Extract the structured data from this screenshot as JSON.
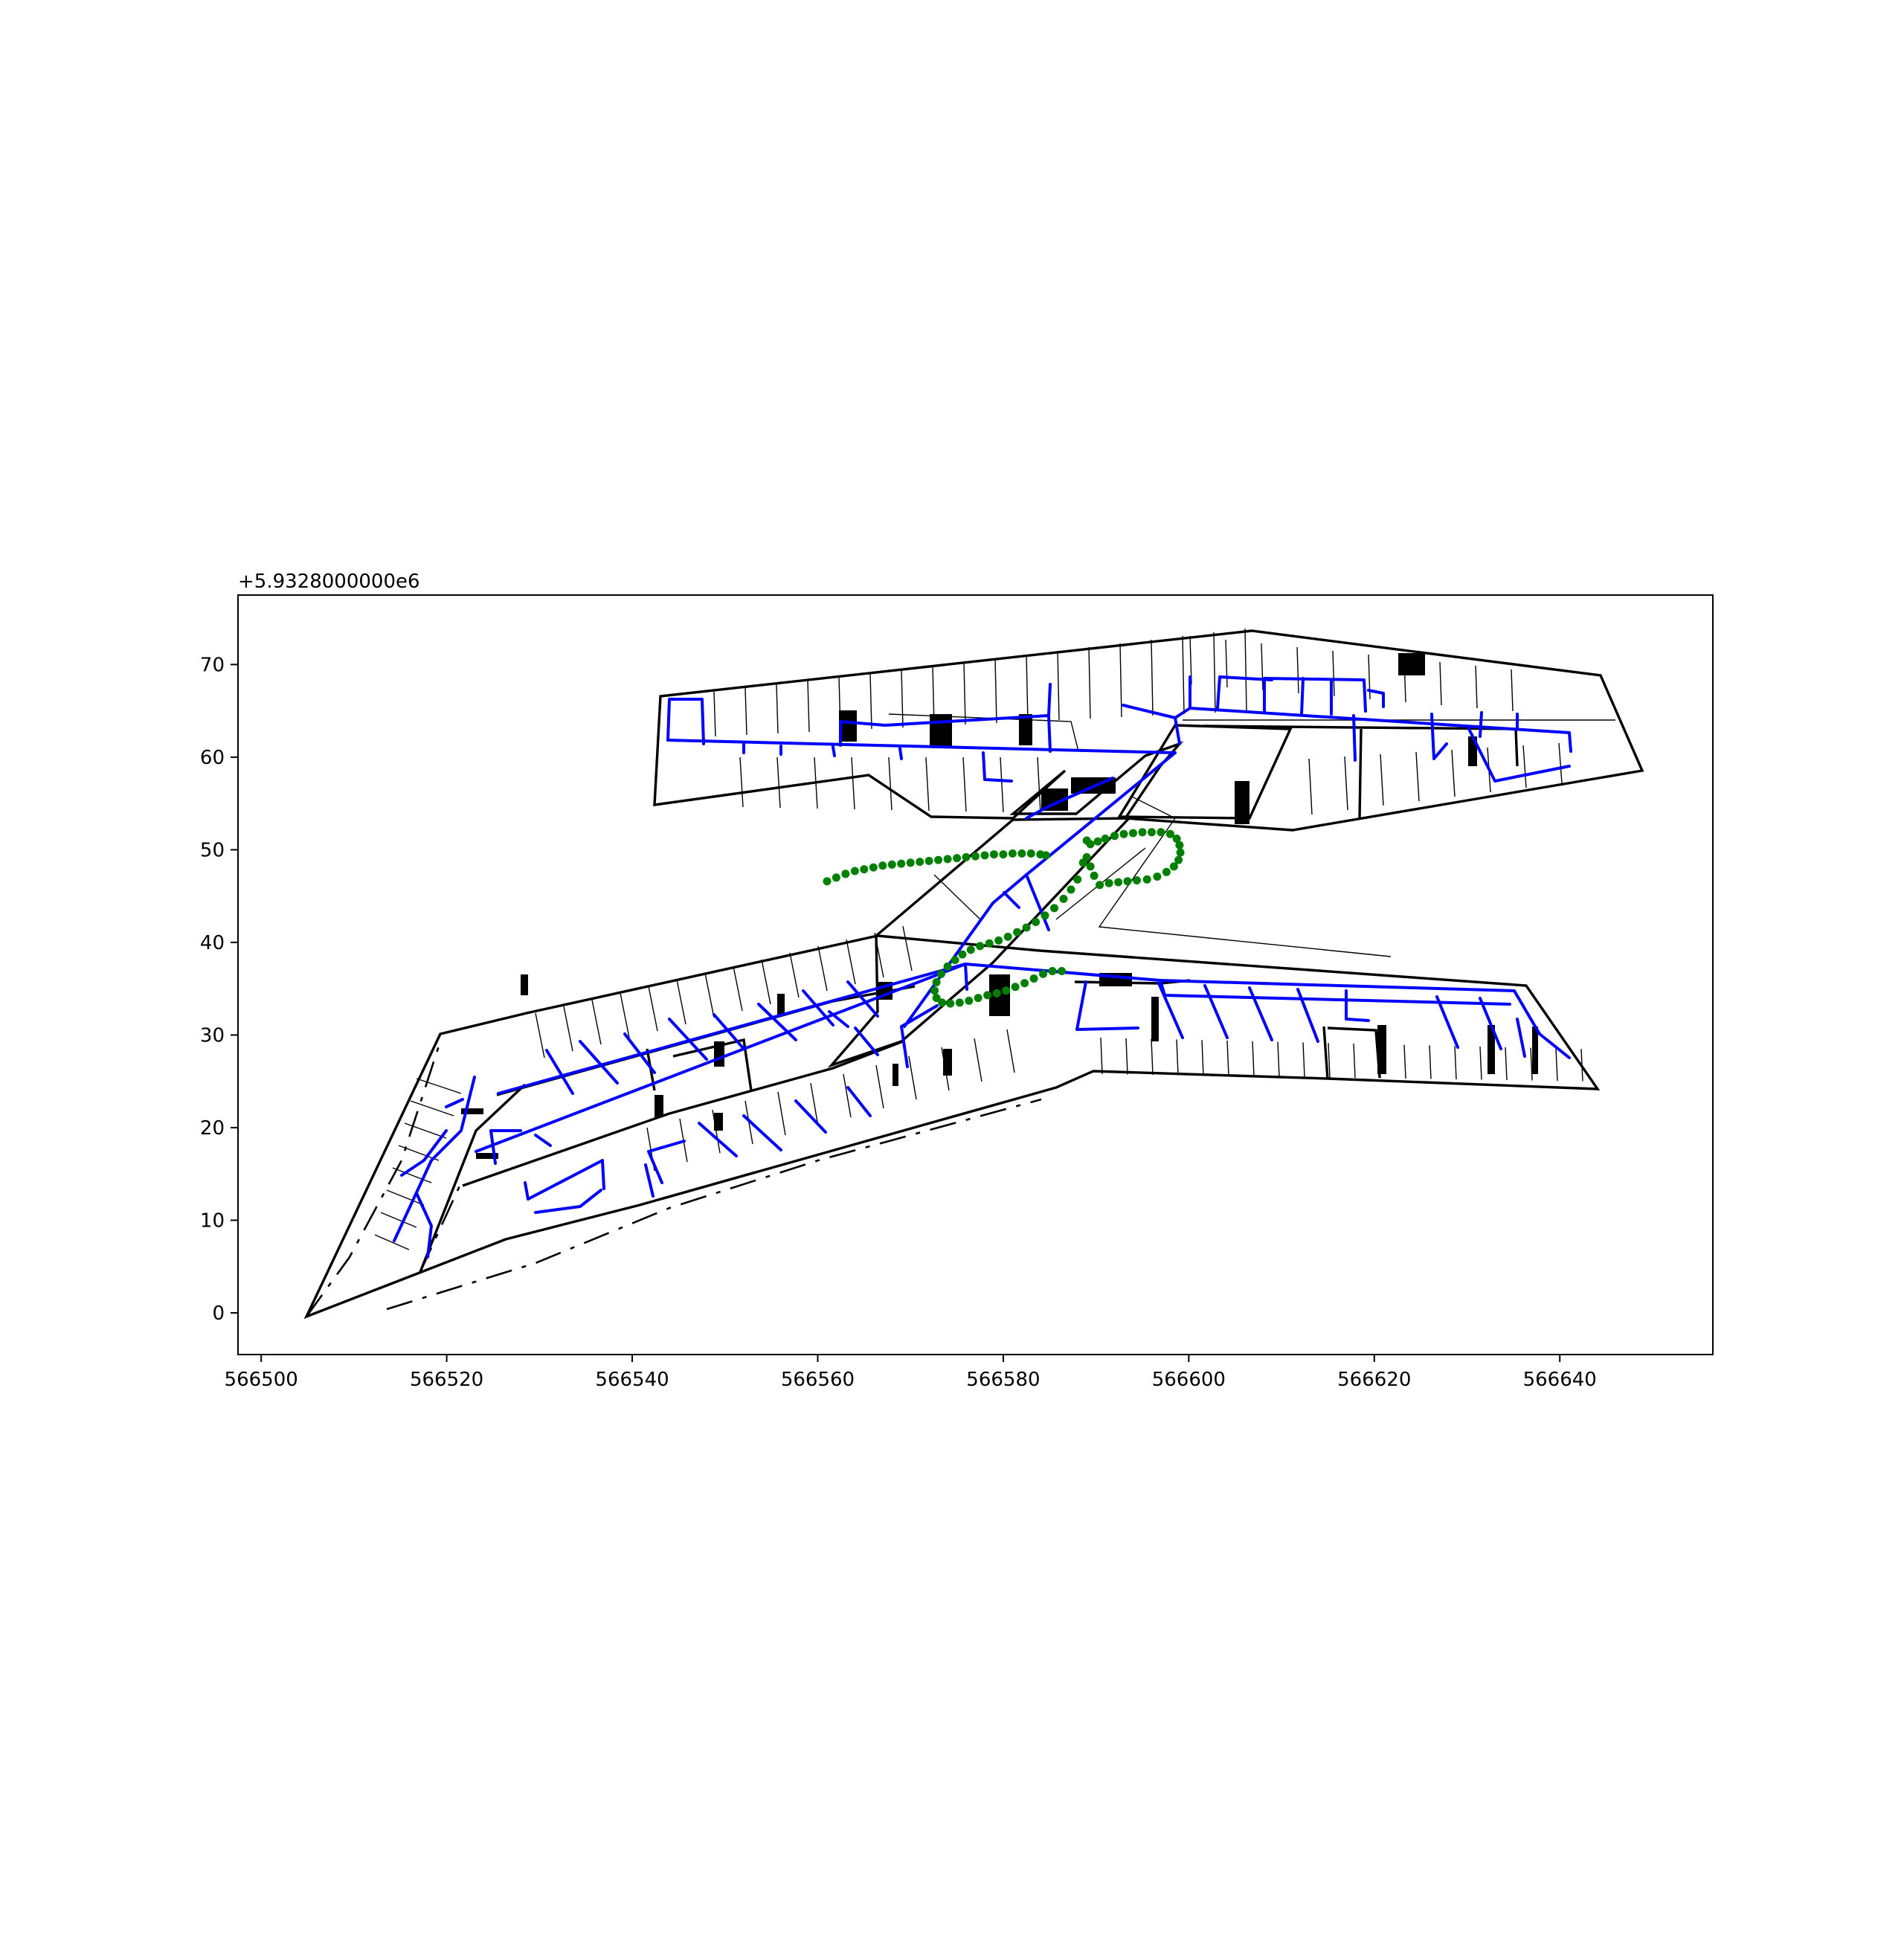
{
  "chart_data": {
    "type": "scatter",
    "title": "",
    "xlabel": "",
    "ylabel": "",
    "y_offset_label": "+5.9328000000e6",
    "xlim": [
      566497.5,
      566656.5
    ],
    "ylim": [
      -4.5,
      77.5
    ],
    "x_ticks": [
      566500,
      566520,
      566540,
      566560,
      566580,
      566600,
      566620,
      566640
    ],
    "x_tick_labels": [
      "566500",
      "566520",
      "566540",
      "566560",
      "566580",
      "566600",
      "566620",
      "566640"
    ],
    "y_ticks": [
      0,
      10,
      20,
      30,
      40,
      50,
      60,
      70
    ],
    "y_tick_labels": [
      "0",
      "10",
      "20",
      "30",
      "40",
      "50",
      "60",
      "70"
    ],
    "grid": false,
    "legend": "none",
    "colors": {
      "floor_plan": "#000000",
      "corridor_network": "#0000ff",
      "trajectory": "#008000"
    },
    "series": [
      {
        "points": [
          [
            566561.0,
            46.6
          ],
          [
            566562.0,
            47.0
          ],
          [
            566563.0,
            47.4
          ],
          [
            566564.0,
            47.7
          ],
          [
            566565.0,
            47.9
          ],
          [
            566566.0,
            48.1
          ],
          [
            566567.0,
            48.3
          ],
          [
            566568.0,
            48.4
          ],
          [
            566569.0,
            48.5
          ],
          [
            566570.0,
            48.6
          ],
          [
            566571.0,
            48.7
          ],
          [
            566572.0,
            48.8
          ],
          [
            566573.0,
            48.9
          ],
          [
            566574.0,
            49.0
          ],
          [
            566575.0,
            49.1
          ],
          [
            566576.0,
            49.2
          ],
          [
            566577.0,
            49.3
          ],
          [
            566578.0,
            49.4
          ],
          [
            566579.0,
            49.5
          ],
          [
            566580.0,
            49.5
          ],
          [
            566581.0,
            49.6
          ],
          [
            566582.0,
            49.6
          ],
          [
            566583.0,
            49.6
          ],
          [
            566584.0,
            49.5
          ],
          [
            566584.6,
            49.4
          ],
          [
            566589.0,
            51.0
          ],
          [
            566589.4,
            50.6
          ],
          [
            566590.2,
            50.9
          ],
          [
            566591.0,
            51.2
          ],
          [
            566592.0,
            51.5
          ],
          [
            566593.0,
            51.7
          ],
          [
            566594.0,
            51.8
          ],
          [
            566595.0,
            51.9
          ],
          [
            566596.0,
            51.9
          ],
          [
            566597.0,
            51.9
          ],
          [
            566598.0,
            51.7
          ],
          [
            566598.7,
            51.2
          ],
          [
            566599.0,
            50.5
          ],
          [
            566599.1,
            49.7
          ],
          [
            566598.9,
            48.9
          ],
          [
            566598.4,
            48.2
          ],
          [
            566597.6,
            47.6
          ],
          [
            566596.6,
            47.1
          ],
          [
            566595.5,
            46.8
          ],
          [
            566594.4,
            46.7
          ],
          [
            566593.4,
            46.6
          ],
          [
            566592.4,
            46.5
          ],
          [
            566591.4,
            46.4
          ],
          [
            566590.4,
            46.2
          ],
          [
            566589.8,
            47.2
          ],
          [
            566589.4,
            48.2
          ],
          [
            566589.0,
            49.2
          ],
          [
            566588.6,
            48.6
          ],
          [
            566588.0,
            46.8
          ],
          [
            566587.3,
            45.7
          ],
          [
            566586.5,
            44.7
          ],
          [
            566585.5,
            43.7
          ],
          [
            566584.5,
            42.9
          ],
          [
            566583.5,
            42.2
          ],
          [
            566582.5,
            41.6
          ],
          [
            566581.5,
            41.1
          ],
          [
            566580.5,
            40.6
          ],
          [
            566579.5,
            40.2
          ],
          [
            566578.5,
            39.9
          ],
          [
            566577.5,
            39.6
          ],
          [
            566576.5,
            39.2
          ],
          [
            566575.6,
            38.7
          ],
          [
            566574.8,
            38.1
          ],
          [
            566574.0,
            37.4
          ],
          [
            566573.3,
            36.6
          ],
          [
            566572.8,
            35.7
          ],
          [
            566572.6,
            34.8
          ],
          [
            566572.8,
            34.0
          ],
          [
            566573.4,
            33.5
          ],
          [
            566574.3,
            33.4
          ],
          [
            566575.3,
            33.5
          ],
          [
            566576.3,
            33.7
          ],
          [
            566577.3,
            34.0
          ],
          [
            566578.3,
            34.3
          ],
          [
            566579.3,
            34.5
          ],
          [
            566580.3,
            34.8
          ],
          [
            566581.3,
            35.2
          ],
          [
            566582.3,
            35.6
          ],
          [
            566583.3,
            36.1
          ],
          [
            566584.3,
            36.6
          ],
          [
            566585.3,
            36.9
          ],
          [
            566586.3,
            36.9
          ]
        ]
      }
    ]
  }
}
